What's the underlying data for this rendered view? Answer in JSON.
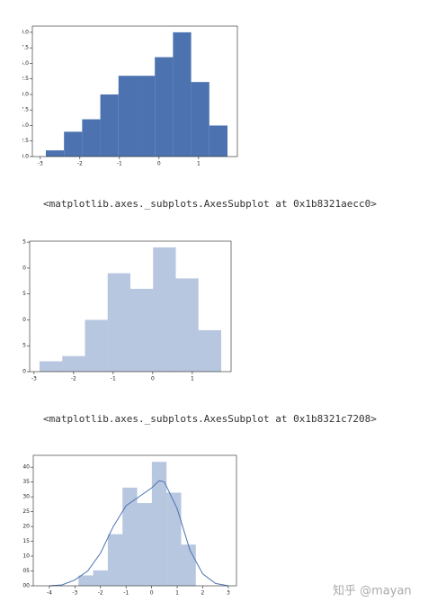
{
  "chart_data": [
    {
      "type": "histogram",
      "bins": [
        -2.86,
        -2.401,
        -1.942,
        -1.483,
        -1.024,
        -0.565,
        -0.106,
        0.353,
        0.812,
        1.271,
        1.73
      ],
      "counts": [
        1,
        4,
        6,
        10,
        13,
        13,
        16,
        20,
        12,
        5
      ],
      "color": "#4c72b0",
      "alpha": 1,
      "xlim": [
        -3.2,
        1.98
      ],
      "ylim": [
        0,
        21
      ],
      "xticks": [
        -3,
        -2,
        -1,
        0,
        1
      ],
      "yticks": [
        {
          "value": 0,
          "label": "0.0"
        },
        {
          "value": 2.5,
          "label": "2.5"
        },
        {
          "value": 5,
          "label": "5.0"
        },
        {
          "value": 7.5,
          "label": "7.5"
        },
        {
          "value": 10,
          "label": "10.0"
        },
        {
          "value": 12.5,
          "label": "12.5"
        },
        {
          "value": 15,
          "label": "15.0"
        },
        {
          "value": 17.5,
          "label": "17.5"
        },
        {
          "value": 20,
          "label": "20.0"
        }
      ]
    },
    {
      "type": "histogram",
      "bins": [
        -2.86,
        -2.286,
        -1.712,
        -1.139,
        -0.565,
        0.009,
        0.583,
        1.156,
        1.73
      ],
      "counts": [
        2,
        3,
        10,
        19,
        16,
        24,
        18,
        8
      ],
      "color": "#4c72b0",
      "alpha": 0.4,
      "xlim": [
        -3.11,
        1.98
      ],
      "ylim": [
        0,
        25.2
      ],
      "xticks": [
        -3,
        -2,
        -1,
        0,
        1
      ],
      "yticks": [
        0,
        5,
        10,
        15,
        20,
        25
      ]
    },
    {
      "type": "histogram",
      "bins": [
        -2.86,
        -2.286,
        -1.712,
        -1.139,
        -0.565,
        0.009,
        0.583,
        1.156,
        1.73
      ],
      "counts": [
        0.035,
        0.052,
        0.174,
        0.331,
        0.279,
        0.418,
        0.314,
        0.139
      ],
      "color": "#4c72b0",
      "alpha": 0.4,
      "kde": {
        "x": [
          -4,
          -3.5,
          -3,
          -2.5,
          -2,
          -1.5,
          -1,
          -0.5,
          0,
          0.3,
          0.5,
          1,
          1.5,
          2,
          2.5,
          3
        ],
        "y": [
          0.0,
          0.003,
          0.02,
          0.05,
          0.11,
          0.2,
          0.27,
          0.3,
          0.33,
          0.355,
          0.35,
          0.26,
          0.12,
          0.04,
          0.008,
          0.0
        ]
      },
      "xlim": [
        -4.63,
        3.32
      ],
      "ylim": [
        0,
        0.44
      ],
      "xticks": [
        -4,
        -3,
        -2,
        -1,
        0,
        1,
        2,
        3
      ],
      "yticks": [
        {
          "value": 0,
          "label": "0.00"
        },
        {
          "value": 0.05,
          "label": "0.05"
        },
        {
          "value": 0.1,
          "label": "0.10"
        },
        {
          "value": 0.15,
          "label": "0.15"
        },
        {
          "value": 0.2,
          "label": "0.20"
        },
        {
          "value": 0.25,
          "label": "0.25"
        },
        {
          "value": 0.3,
          "label": "0.30"
        },
        {
          "value": 0.35,
          "label": "0.35"
        },
        {
          "value": 0.4,
          "label": "0.40"
        }
      ]
    }
  ],
  "outputs": [
    "<matplotlib.axes._subplots.AxesSubplot at 0x1b8321aecc0>",
    "<matplotlib.axes._subplots.AxesSubplot at 0x1b8321c7208>"
  ],
  "watermark": "知乎 @mayan"
}
